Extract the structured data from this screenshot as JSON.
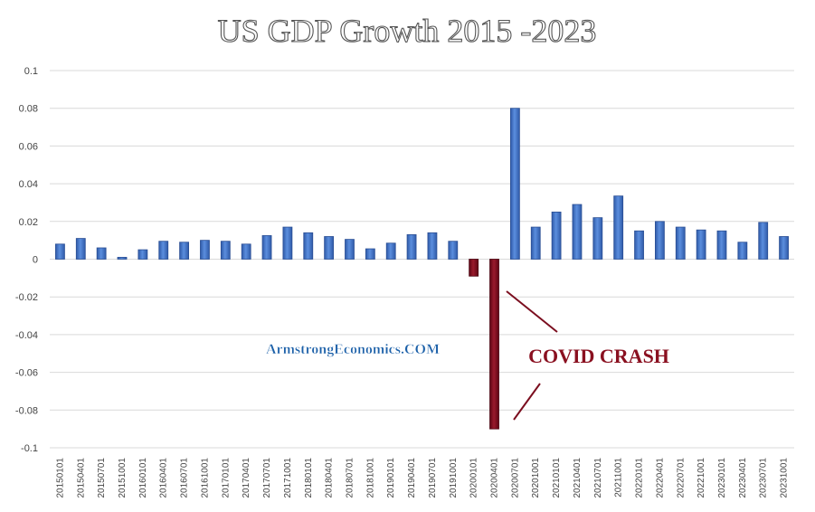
{
  "chart_data": {
    "type": "bar",
    "title": "US GDP Growth 2015 -2023",
    "xlabel": "",
    "ylabel": "",
    "ylim": [
      -0.1,
      0.1
    ],
    "yticks": [
      "0.1",
      "0.08",
      "0.06",
      "0.04",
      "0.02",
      "0",
      "-0.02",
      "-0.04",
      "-0.06",
      "-0.08",
      "-0.1"
    ],
    "ytick_values": [
      0.1,
      0.08,
      0.06,
      0.04,
      0.02,
      0,
      -0.02,
      -0.04,
      -0.06,
      -0.08,
      -0.1
    ],
    "grid": true,
    "categories": [
      "20150101",
      "20150401",
      "20150701",
      "20151001",
      "20160101",
      "20160401",
      "20160701",
      "20161001",
      "20170101",
      "20170401",
      "20170701",
      "20171001",
      "20180101",
      "20180401",
      "20180701",
      "20181001",
      "20190101",
      "20190401",
      "20190701",
      "20191001",
      "20200101",
      "20200401",
      "20200701",
      "20201001",
      "20210101",
      "20210401",
      "20210701",
      "20211001",
      "20220101",
      "20220401",
      "20220701",
      "20221001",
      "20230101",
      "20230401",
      "20230701",
      "20231001"
    ],
    "values": [
      0.008,
      0.011,
      0.006,
      0.001,
      0.005,
      0.0095,
      0.009,
      0.01,
      0.0095,
      0.008,
      0.0125,
      0.017,
      0.014,
      0.012,
      0.0105,
      0.0055,
      0.0085,
      0.013,
      0.014,
      0.0095,
      -0.009,
      -0.09,
      0.08,
      0.017,
      0.025,
      0.029,
      0.022,
      0.0335,
      0.015,
      0.02,
      0.017,
      0.0155,
      0.015,
      0.009,
      0.0195,
      0.012
    ],
    "colors": {
      "positive": "#4472c4",
      "negative": "#7b0e1f",
      "annotation": "#8a1020",
      "watermark": "#1a5fa8"
    },
    "watermark": "ArmstrongEconomics.COM",
    "annotation": "COVID CRASH"
  }
}
